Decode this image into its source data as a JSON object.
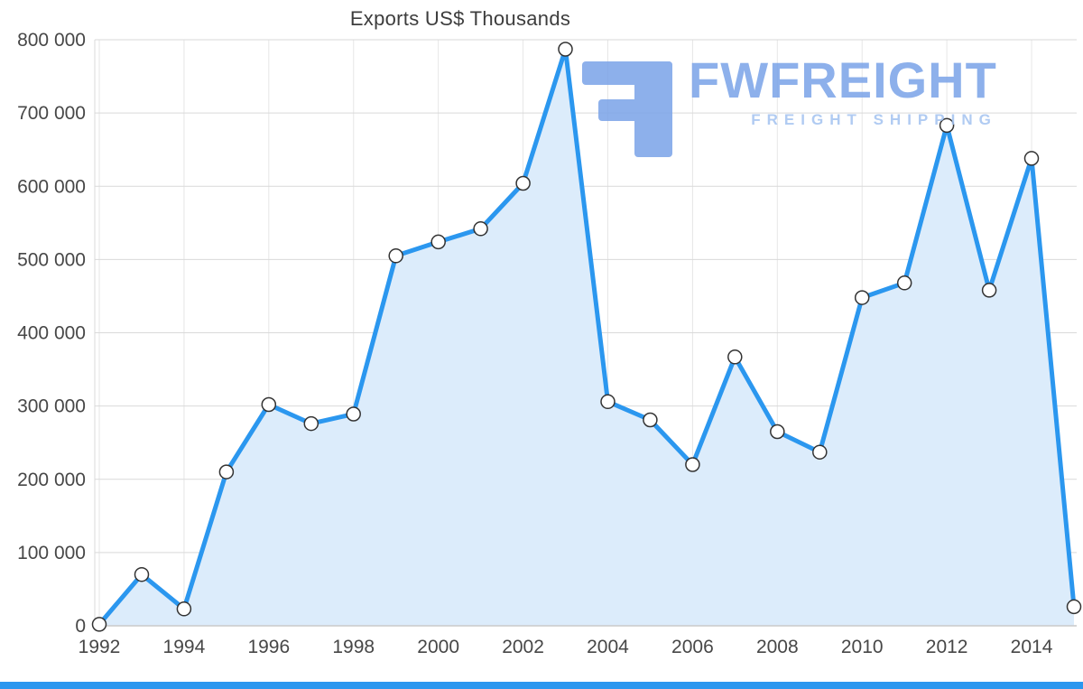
{
  "header": {
    "title": "Exports US$ Thousands"
  },
  "watermark": {
    "brand": "FWFREIGHT",
    "tagline": "FREIGHT SHIPPING"
  },
  "chart_data": {
    "type": "area",
    "title": "Exports US$ Thousands",
    "xlabel": "",
    "ylabel": "",
    "x": [
      1992,
      1993,
      1994,
      1995,
      1996,
      1997,
      1998,
      1999,
      2000,
      2001,
      2002,
      2003,
      2004,
      2005,
      2006,
      2007,
      2008,
      2009,
      2010,
      2011,
      2012,
      2013,
      2014,
      2015
    ],
    "values": [
      2000,
      70000,
      23000,
      210000,
      302000,
      276000,
      289000,
      505000,
      524000,
      542000,
      604000,
      787000,
      306000,
      281000,
      220000,
      367000,
      265000,
      237000,
      448000,
      468000,
      683000,
      458000,
      638000,
      26000
    ],
    "xlim": [
      1992,
      2015
    ],
    "ylim": [
      0,
      800000
    ],
    "x_ticks": [
      1992,
      1994,
      1996,
      1998,
      2000,
      2002,
      2004,
      2006,
      2008,
      2010,
      2012,
      2014
    ],
    "x_tick_labels": [
      "1992",
      "1994",
      "1996",
      "1998",
      "2000",
      "2002",
      "2004",
      "2006",
      "2008",
      "2010",
      "2012",
      "2014"
    ],
    "y_ticks": [
      0,
      100000,
      200000,
      300000,
      400000,
      500000,
      600000,
      700000,
      800000
    ],
    "y_tick_labels": [
      "0",
      "100 000",
      "200 000",
      "300 000",
      "400 000",
      "500 000",
      "600 000",
      "700 000",
      "800 000"
    ],
    "grid": true,
    "legend": "none",
    "colors": {
      "line": "#2b97ef",
      "fill": "#dcecfb",
      "marker_fill": "#ffffff",
      "marker_stroke": "#333333",
      "grid_h": "#d9d9d9",
      "grid_v": "#e6e6e6",
      "axis_line": "#c9c9c9",
      "axis_text": "#474747",
      "watermark": "#7aa3e8",
      "bottom_bar": "#2b97ef"
    }
  }
}
